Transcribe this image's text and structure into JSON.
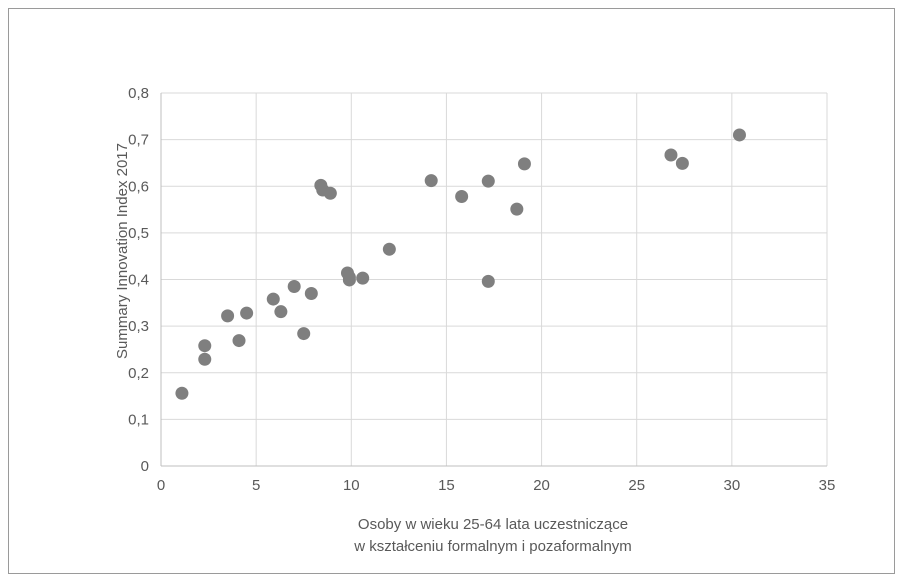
{
  "chart_data": {
    "type": "scatter",
    "title": "",
    "xlabel": [
      "Osoby w wieku 25-64 lata uczestniczące",
      "w kształceniu formalnym i pozaformalnym"
    ],
    "ylabel": "Summary Innovation Index 2017",
    "xlim": [
      0,
      35
    ],
    "ylim": [
      0,
      0.8
    ],
    "x_ticks": [
      "0",
      "5",
      "10",
      "15",
      "20",
      "25",
      "30",
      "35"
    ],
    "y_ticks": [
      "0",
      "0,1",
      "0,2",
      "0,3",
      "0,4",
      "0,5",
      "0,6",
      "0,7",
      "0,8"
    ],
    "grid": true,
    "legend": "none",
    "marker_color": "#7f7f7f",
    "grid_color": "#d9d9d9",
    "axis_color": "#bfbfbf",
    "series": [
      {
        "points": [
          {
            "x": 1.1,
            "y": 0.156
          },
          {
            "x": 2.3,
            "y": 0.229
          },
          {
            "x": 2.3,
            "y": 0.258
          },
          {
            "x": 3.5,
            "y": 0.322
          },
          {
            "x": 4.1,
            "y": 0.269
          },
          {
            "x": 4.5,
            "y": 0.328
          },
          {
            "x": 5.9,
            "y": 0.358
          },
          {
            "x": 6.3,
            "y": 0.331
          },
          {
            "x": 7.0,
            "y": 0.385
          },
          {
            "x": 7.5,
            "y": 0.284
          },
          {
            "x": 7.9,
            "y": 0.37
          },
          {
            "x": 8.4,
            "y": 0.602
          },
          {
            "x": 8.5,
            "y": 0.592
          },
          {
            "x": 8.9,
            "y": 0.585
          },
          {
            "x": 9.8,
            "y": 0.414
          },
          {
            "x": 9.9,
            "y": 0.405
          },
          {
            "x": 9.9,
            "y": 0.399
          },
          {
            "x": 10.6,
            "y": 0.403
          },
          {
            "x": 12.0,
            "y": 0.465
          },
          {
            "x": 14.2,
            "y": 0.612
          },
          {
            "x": 15.8,
            "y": 0.578
          },
          {
            "x": 17.2,
            "y": 0.611
          },
          {
            "x": 17.2,
            "y": 0.396
          },
          {
            "x": 18.7,
            "y": 0.551
          },
          {
            "x": 19.1,
            "y": 0.648
          },
          {
            "x": 26.8,
            "y": 0.667
          },
          {
            "x": 27.4,
            "y": 0.649
          },
          {
            "x": 30.4,
            "y": 0.71
          }
        ]
      }
    ]
  }
}
